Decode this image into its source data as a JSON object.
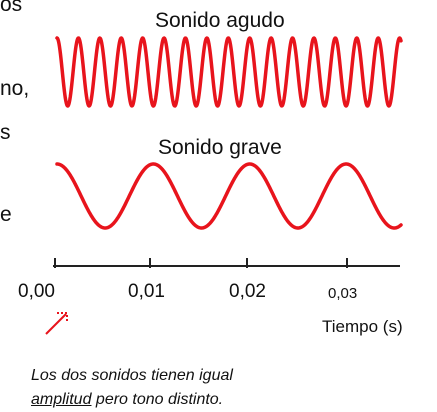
{
  "left_fragments": [
    "os",
    "no,",
    "s",
    "e"
  ],
  "waves": [
    {
      "title": "Sonido agudo",
      "frequency_hz": 450
    },
    {
      "title": "Sonido grave",
      "frequency_hz": 100
    }
  ],
  "axis": {
    "title": "Tiempo (s)",
    "ticks": [
      "0,00",
      "0,01",
      "0,02",
      "0,03"
    ],
    "tick_values": [
      0,
      0.01,
      0.02,
      0.03
    ]
  },
  "caption": {
    "line1": "Los dos sonidos tienen igual",
    "line2_underlined": "amplitud",
    "line2_rest": " pero tono distinto."
  },
  "colors": {
    "wave": "#e8141c",
    "axis": "#222222",
    "arrow": "#e8141c"
  }
}
